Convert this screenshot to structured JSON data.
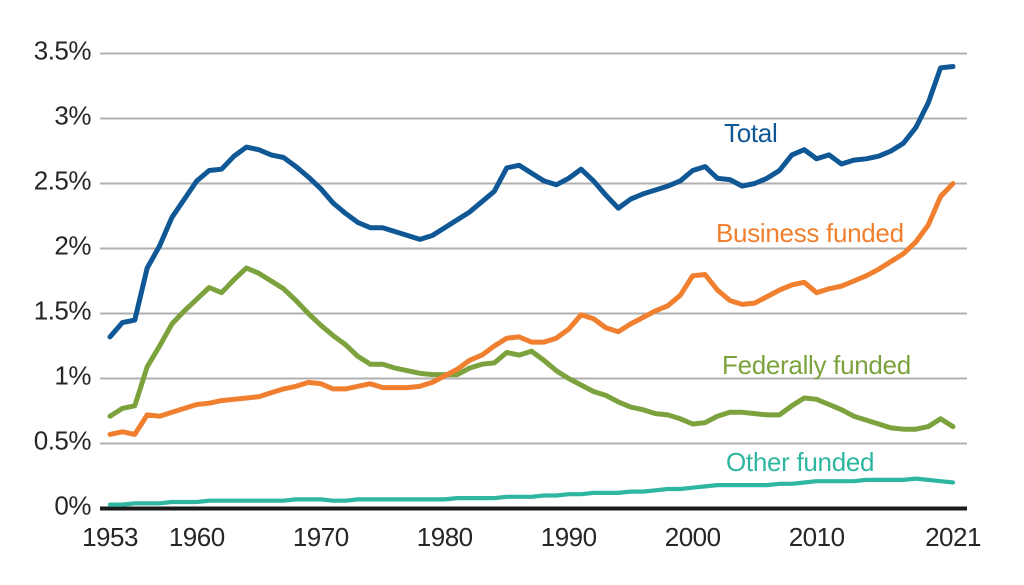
{
  "figure": {
    "background": "#ffffff"
  },
  "chart_data": {
    "type": "line",
    "title": "",
    "xlabel": "",
    "ylabel": "",
    "grid": "horizontal",
    "gridline_color": "#b0b0b0",
    "axis_line_color": "#1a1a1a",
    "tick_label_color": "#262626",
    "xlim": [
      1953,
      2021
    ],
    "ylim": [
      0,
      3.5
    ],
    "x_tick_labels": [
      "1953",
      "1960",
      "1970",
      "1980",
      "1990",
      "2000",
      "2010",
      "2021"
    ],
    "x_tick_values": [
      1953,
      1960,
      1970,
      1980,
      1990,
      2000,
      2010,
      2021
    ],
    "y_tick_labels": [
      "0%",
      "0.5%",
      "1%",
      "1.5%",
      "2%",
      "2.5%",
      "3%",
      "3.5%"
    ],
    "y_tick_values": [
      0,
      0.5,
      1,
      1.5,
      2,
      2.5,
      3,
      3.5
    ],
    "x": [
      1953,
      1954,
      1955,
      1956,
      1957,
      1958,
      1959,
      1960,
      1961,
      1962,
      1963,
      1964,
      1965,
      1966,
      1967,
      1968,
      1969,
      1970,
      1971,
      1972,
      1973,
      1974,
      1975,
      1976,
      1977,
      1978,
      1979,
      1980,
      1981,
      1982,
      1983,
      1984,
      1985,
      1986,
      1987,
      1988,
      1989,
      1990,
      1991,
      1992,
      1993,
      1994,
      1995,
      1996,
      1997,
      1998,
      1999,
      2000,
      2001,
      2002,
      2003,
      2004,
      2005,
      2006,
      2007,
      2008,
      2009,
      2010,
      2011,
      2012,
      2013,
      2014,
      2015,
      2016,
      2017,
      2018,
      2019,
      2020,
      2021
    ],
    "series": [
      {
        "name": "Total",
        "color": "#0f5795",
        "values": [
          1.32,
          1.43,
          1.45,
          1.85,
          2.02,
          2.24,
          2.38,
          2.52,
          2.6,
          2.61,
          2.71,
          2.78,
          2.76,
          2.72,
          2.7,
          2.63,
          2.55,
          2.46,
          2.35,
          2.27,
          2.2,
          2.16,
          2.16,
          2.13,
          2.1,
          2.07,
          2.1,
          2.16,
          2.22,
          2.28,
          2.36,
          2.44,
          2.62,
          2.64,
          2.58,
          2.52,
          2.49,
          2.54,
          2.61,
          2.52,
          2.41,
          2.31,
          2.38,
          2.42,
          2.45,
          2.48,
          2.52,
          2.6,
          2.63,
          2.54,
          2.53,
          2.48,
          2.5,
          2.54,
          2.6,
          2.72,
          2.76,
          2.69,
          2.72,
          2.65,
          2.68,
          2.69,
          2.71,
          2.75,
          2.81,
          2.93,
          3.12,
          3.39,
          3.4
        ]
      },
      {
        "name": "Business funded",
        "color": "#f0802f",
        "values": [
          0.57,
          0.59,
          0.57,
          0.72,
          0.71,
          0.74,
          0.77,
          0.8,
          0.81,
          0.83,
          0.84,
          0.85,
          0.86,
          0.89,
          0.92,
          0.94,
          0.97,
          0.96,
          0.92,
          0.92,
          0.94,
          0.96,
          0.93,
          0.93,
          0.93,
          0.94,
          0.97,
          1.02,
          1.07,
          1.14,
          1.18,
          1.25,
          1.31,
          1.32,
          1.28,
          1.28,
          1.31,
          1.38,
          1.49,
          1.46,
          1.39,
          1.36,
          1.42,
          1.47,
          1.52,
          1.56,
          1.64,
          1.79,
          1.8,
          1.68,
          1.6,
          1.57,
          1.58,
          1.63,
          1.68,
          1.72,
          1.74,
          1.66,
          1.69,
          1.71,
          1.75,
          1.79,
          1.84,
          1.9,
          1.96,
          2.05,
          2.18,
          2.4,
          2.5
        ]
      },
      {
        "name": "Federally funded",
        "color": "#7ca23d",
        "values": [
          0.71,
          0.77,
          0.79,
          1.09,
          1.25,
          1.42,
          1.52,
          1.61,
          1.7,
          1.66,
          1.76,
          1.85,
          1.81,
          1.75,
          1.69,
          1.6,
          1.5,
          1.41,
          1.33,
          1.26,
          1.17,
          1.11,
          1.11,
          1.08,
          1.06,
          1.04,
          1.03,
          1.03,
          1.03,
          1.08,
          1.11,
          1.12,
          1.2,
          1.18,
          1.21,
          1.14,
          1.06,
          1.0,
          0.95,
          0.9,
          0.87,
          0.82,
          0.78,
          0.76,
          0.73,
          0.72,
          0.69,
          0.65,
          0.66,
          0.71,
          0.74,
          0.74,
          0.73,
          0.72,
          0.72,
          0.79,
          0.85,
          0.84,
          0.8,
          0.76,
          0.71,
          0.68,
          0.65,
          0.62,
          0.61,
          0.61,
          0.63,
          0.69,
          0.63
        ]
      },
      {
        "name": "Other funded",
        "color": "#2eb6a1",
        "values": [
          0.03,
          0.03,
          0.04,
          0.04,
          0.04,
          0.05,
          0.05,
          0.05,
          0.06,
          0.06,
          0.06,
          0.06,
          0.06,
          0.06,
          0.06,
          0.07,
          0.07,
          0.07,
          0.06,
          0.06,
          0.07,
          0.07,
          0.07,
          0.07,
          0.07,
          0.07,
          0.07,
          0.07,
          0.08,
          0.08,
          0.08,
          0.08,
          0.09,
          0.09,
          0.09,
          0.1,
          0.1,
          0.11,
          0.11,
          0.12,
          0.12,
          0.12,
          0.13,
          0.13,
          0.14,
          0.15,
          0.15,
          0.16,
          0.17,
          0.18,
          0.18,
          0.18,
          0.18,
          0.18,
          0.19,
          0.19,
          0.2,
          0.21,
          0.21,
          0.21,
          0.21,
          0.22,
          0.22,
          0.22,
          0.22,
          0.23,
          0.22,
          0.21,
          0.2
        ]
      }
    ],
    "legend_position": "inline-annotations"
  }
}
